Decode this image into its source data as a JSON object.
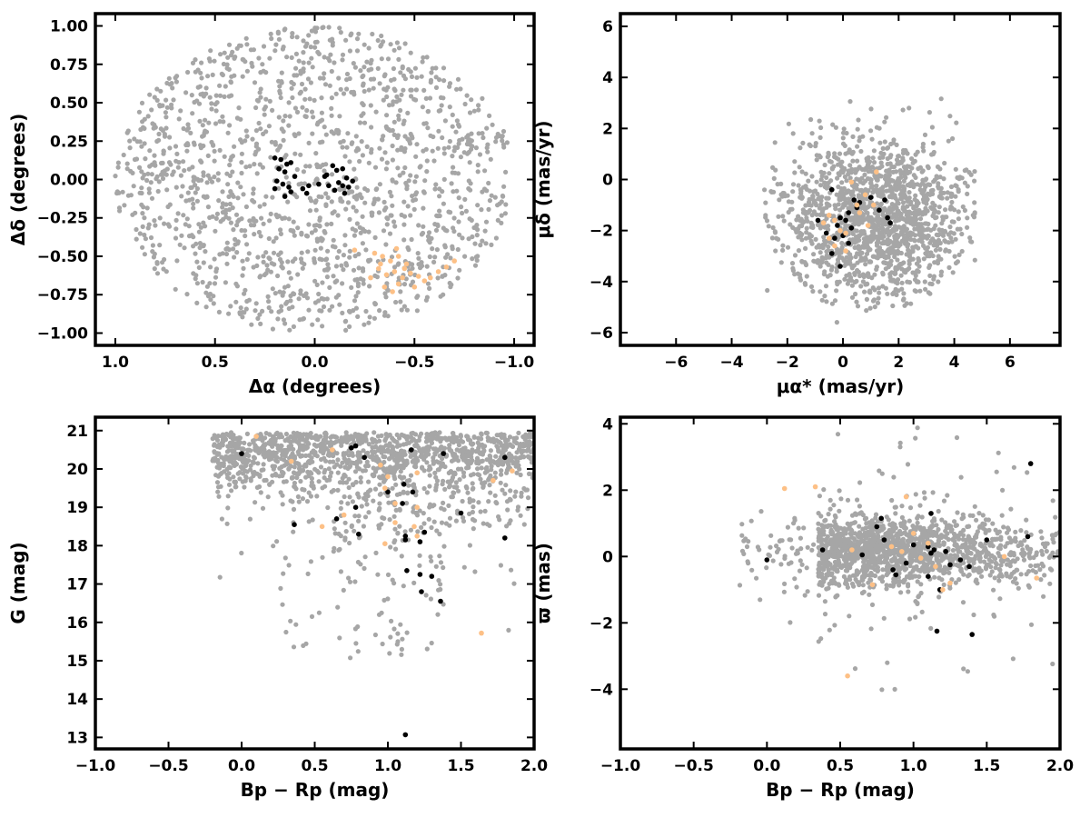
{
  "colors": {
    "field": "#a6a6a6",
    "cluster_a": "#000000",
    "cluster_b": "#fdc086"
  },
  "chart_data": [
    {
      "type": "scatter",
      "xlabel": "Δα (degrees)",
      "ylabel": "Δδ (degrees)",
      "xlim": [
        1.1,
        -1.1
      ],
      "ylim": [
        -1.08,
        1.08
      ],
      "xticks": [
        1.0,
        0.5,
        0.0,
        -0.5,
        -1.0
      ],
      "xtick_labels": [
        "1.0",
        "0.5",
        "0.0",
        "−0.5",
        "−1.0"
      ],
      "yticks": [
        1.0,
        0.75,
        0.5,
        0.25,
        0.0,
        -0.25,
        -0.5,
        -0.75,
        -1.0
      ],
      "ytick_labels": [
        "1.00",
        "0.75",
        "0.50",
        "0.25",
        "0.00",
        "−0.25",
        "−0.50",
        "−0.75",
        "−1.00"
      ],
      "field_distribution": {
        "shape": "disk",
        "center": [
          0.0,
          0.0
        ],
        "radius": 1.0,
        "count": 1500
      },
      "series": [
        {
          "color": "#000000",
          "points": [
            [
              0.2,
              0.14
            ],
            [
              0.17,
              0.13
            ],
            [
              0.14,
              0.1
            ],
            [
              0.12,
              0.11
            ],
            [
              0.18,
              0.07
            ],
            [
              0.15,
              0.05
            ],
            [
              0.1,
              0.02
            ],
            [
              0.19,
              -0.01
            ],
            [
              0.16,
              -0.03
            ],
            [
              0.13,
              -0.05
            ],
            [
              0.2,
              -0.06
            ],
            [
              0.15,
              -0.11
            ],
            [
              0.12,
              -0.08
            ],
            [
              0.06,
              -0.06
            ],
            [
              0.03,
              -0.04
            ],
            [
              -0.05,
              0.02
            ],
            [
              -0.06,
              0.03
            ],
            [
              -0.09,
              0.09
            ],
            [
              -0.11,
              0.06
            ],
            [
              -0.14,
              0.07
            ],
            [
              -0.16,
              0.01
            ],
            [
              -0.12,
              -0.02
            ],
            [
              -0.14,
              -0.04
            ],
            [
              -0.17,
              -0.05
            ],
            [
              -0.19,
              -0.01
            ],
            [
              -0.15,
              -0.09
            ],
            [
              -0.07,
              -0.04
            ],
            [
              -0.02,
              -0.03
            ],
            [
              0.04,
              -0.09
            ],
            [
              -0.1,
              -0.07
            ]
          ]
        },
        {
          "color": "#fdc086",
          "points": [
            [
              -0.2,
              -0.46
            ],
            [
              -0.3,
              -0.48
            ],
            [
              -0.34,
              -0.5
            ],
            [
              -0.38,
              -0.53
            ],
            [
              -0.42,
              -0.5
            ],
            [
              -0.46,
              -0.55
            ],
            [
              -0.32,
              -0.58
            ],
            [
              -0.36,
              -0.62
            ],
            [
              -0.4,
              -0.6
            ],
            [
              -0.44,
              -0.64
            ],
            [
              -0.48,
              -0.61
            ],
            [
              -0.52,
              -0.63
            ],
            [
              -0.55,
              -0.66
            ],
            [
              -0.58,
              -0.64
            ],
            [
              -0.62,
              -0.6
            ],
            [
              -0.66,
              -0.57
            ],
            [
              -0.7,
              -0.53
            ],
            [
              -0.35,
              -0.7
            ],
            [
              -0.39,
              -0.73
            ],
            [
              -0.42,
              -0.68
            ],
            [
              -0.28,
              -0.64
            ],
            [
              -0.5,
              -0.7
            ],
            [
              -0.45,
              -0.58
            ],
            [
              -0.33,
              -0.55
            ],
            [
              -0.41,
              -0.45
            ]
          ]
        }
      ]
    },
    {
      "type": "scatter",
      "xlabel": "μα* (mas/yr)",
      "ylabel": "μδ (mas/yr)",
      "xlim": [
        -8.0,
        7.8
      ],
      "ylim": [
        -6.5,
        6.5
      ],
      "xticks": [
        -6,
        -4,
        -2,
        0,
        2,
        4,
        6
      ],
      "xtick_labels": [
        "−6",
        "−4",
        "−2",
        "0",
        "2",
        "4",
        "6"
      ],
      "yticks": [
        -6,
        -4,
        -2,
        0,
        2,
        4,
        6
      ],
      "ytick_labels": [
        "−6",
        "−4",
        "−2",
        "0",
        "2",
        "4",
        "6"
      ],
      "field_distribution": {
        "shape": "blob",
        "center": [
          1.2,
          -1.5
        ],
        "spread": [
          2.2,
          2.0
        ],
        "count": 1500
      },
      "series": [
        {
          "color": "#000000",
          "points": [
            [
              -0.4,
              -0.4
            ],
            [
              0.4,
              -0.8
            ],
            [
              0.6,
              -0.9
            ],
            [
              1.0,
              -0.7
            ],
            [
              1.5,
              -0.8
            ],
            [
              1.3,
              -1.2
            ],
            [
              1.6,
              -1.5
            ],
            [
              1.7,
              -1.7
            ],
            [
              0.2,
              -1.3
            ],
            [
              -0.1,
              -1.5
            ],
            [
              0.1,
              -1.6
            ],
            [
              0.3,
              -1.9
            ],
            [
              -0.9,
              -1.6
            ],
            [
              -0.6,
              -2.1
            ],
            [
              -0.3,
              -2.3
            ],
            [
              0.0,
              -2.2
            ],
            [
              0.2,
              -2.5
            ],
            [
              -0.4,
              -2.9
            ],
            [
              -0.1,
              -3.4
            ],
            [
              0.5,
              -1.1
            ],
            [
              -0.2,
              -1.8
            ]
          ]
        },
        {
          "color": "#fdc086",
          "points": [
            [
              0.3,
              -0.1
            ],
            [
              1.2,
              0.3
            ],
            [
              0.8,
              -0.6
            ],
            [
              0.5,
              -1.0
            ],
            [
              -0.5,
              -1.4
            ],
            [
              -0.3,
              -1.6
            ],
            [
              -0.7,
              -1.7
            ],
            [
              -0.1,
              -2.0
            ],
            [
              0.1,
              -2.1
            ],
            [
              -0.5,
              -2.3
            ],
            [
              -0.3,
              -2.6
            ],
            [
              0.1,
              -2.8
            ],
            [
              0.6,
              -1.3
            ],
            [
              1.1,
              -1.0
            ],
            [
              0.9,
              -1.8
            ]
          ]
        }
      ]
    },
    {
      "type": "scatter",
      "xlabel": "Bp − Rp (mag)",
      "ylabel": "G (mag)",
      "xlim": [
        -1.0,
        2.0
      ],
      "ylim": [
        12.7,
        21.35
      ],
      "xticks": [
        -1.0,
        -0.5,
        0.0,
        0.5,
        1.0,
        1.5,
        2.0
      ],
      "xtick_labels": [
        "−1.0",
        "−0.5",
        "0.0",
        "0.5",
        "1.0",
        "1.5",
        "2.0"
      ],
      "yticks": [
        13,
        14,
        15,
        16,
        17,
        18,
        19,
        20,
        21
      ],
      "ytick_labels": [
        "13",
        "14",
        "15",
        "16",
        "17",
        "18",
        "19",
        "20",
        "21"
      ],
      "field_distribution": {
        "shape": "cmd",
        "count": 1500
      },
      "series": [
        {
          "color": "#000000",
          "points": [
            [
              0.0,
              20.4
            ],
            [
              0.75,
              20.55
            ],
            [
              0.78,
              20.6
            ],
            [
              0.84,
              20.3
            ],
            [
              1.16,
              20.5
            ],
            [
              1.38,
              20.4
            ],
            [
              1.8,
              20.3
            ],
            [
              1.11,
              19.6
            ],
            [
              1.17,
              19.4
            ],
            [
              1.0,
              19.4
            ],
            [
              1.1,
              19.1
            ],
            [
              0.78,
              19.0
            ],
            [
              0.65,
              18.7
            ],
            [
              0.36,
              18.55
            ],
            [
              0.8,
              18.3
            ],
            [
              1.12,
              18.25
            ],
            [
              1.12,
              18.15
            ],
            [
              1.22,
              18.1
            ],
            [
              1.25,
              18.35
            ],
            [
              1.5,
              18.85
            ],
            [
              1.8,
              18.2
            ],
            [
              1.13,
              17.35
            ],
            [
              1.22,
              17.25
            ],
            [
              1.3,
              17.2
            ],
            [
              1.23,
              16.8
            ],
            [
              1.36,
              16.55
            ],
            [
              1.12,
              13.07
            ]
          ]
        },
        {
          "color": "#fdc086",
          "points": [
            [
              0.1,
              20.85
            ],
            [
              0.34,
              20.2
            ],
            [
              0.62,
              20.5
            ],
            [
              0.95,
              20.1
            ],
            [
              1.0,
              19.8
            ],
            [
              1.2,
              19.9
            ],
            [
              0.98,
              19.5
            ],
            [
              1.05,
              19.1
            ],
            [
              1.2,
              19.0
            ],
            [
              0.7,
              18.8
            ],
            [
              0.55,
              18.5
            ],
            [
              1.05,
              18.6
            ],
            [
              1.18,
              18.5
            ],
            [
              1.2,
              18.25
            ],
            [
              0.98,
              18.05
            ],
            [
              1.64,
              15.72
            ],
            [
              1.72,
              19.7
            ],
            [
              1.85,
              19.95
            ]
          ]
        }
      ]
    },
    {
      "type": "scatter",
      "xlabel": "Bp − Rp (mag)",
      "ylabel": "ϖ (mas)",
      "xlim": [
        -1.0,
        2.0
      ],
      "ylim": [
        -5.8,
        4.2
      ],
      "xticks": [
        -1.0,
        -0.5,
        0.0,
        0.5,
        1.0,
        1.5,
        2.0
      ],
      "xtick_labels": [
        "−1.0",
        "−0.5",
        "0.0",
        "0.5",
        "1.0",
        "1.5",
        "2.0"
      ],
      "yticks": [
        -4,
        -2,
        0,
        2,
        4
      ],
      "ytick_labels": [
        "−4",
        "−2",
        "0",
        "2",
        "4"
      ],
      "field_distribution": {
        "shape": "band",
        "count": 1500
      },
      "series": [
        {
          "color": "#000000",
          "points": [
            [
              0.0,
              -0.1
            ],
            [
              0.38,
              0.2
            ],
            [
              0.65,
              0.05
            ],
            [
              0.75,
              0.9
            ],
            [
              0.78,
              1.15
            ],
            [
              0.8,
              0.5
            ],
            [
              0.86,
              -0.4
            ],
            [
              0.95,
              -0.2
            ],
            [
              1.0,
              0.35
            ],
            [
              1.1,
              0.3
            ],
            [
              1.12,
              0.1
            ],
            [
              1.14,
              0.2
            ],
            [
              1.1,
              -0.6
            ],
            [
              1.18,
              -1.0
            ],
            [
              1.22,
              0.15
            ],
            [
              1.25,
              -0.25
            ],
            [
              1.32,
              -0.1
            ],
            [
              1.38,
              -0.3
            ],
            [
              1.16,
              -2.25
            ],
            [
              1.4,
              -2.35
            ],
            [
              1.5,
              0.5
            ],
            [
              1.78,
              0.6
            ],
            [
              1.8,
              2.8
            ],
            [
              1.12,
              1.3
            ],
            [
              0.88,
              -0.55
            ]
          ]
        },
        {
          "color": "#fdc086",
          "points": [
            [
              0.12,
              2.05
            ],
            [
              0.33,
              2.1
            ],
            [
              0.55,
              -3.6
            ],
            [
              0.58,
              0.2
            ],
            [
              0.72,
              -0.85
            ],
            [
              0.85,
              0.3
            ],
            [
              0.92,
              0.15
            ],
            [
              0.95,
              1.8
            ],
            [
              1.0,
              0.7
            ],
            [
              1.05,
              -0.05
            ],
            [
              1.1,
              0.4
            ],
            [
              1.15,
              -0.3
            ],
            [
              1.2,
              -1.0
            ],
            [
              1.25,
              -0.8
            ],
            [
              1.62,
              0.0
            ],
            [
              1.84,
              -0.65
            ]
          ]
        }
      ]
    }
  ]
}
